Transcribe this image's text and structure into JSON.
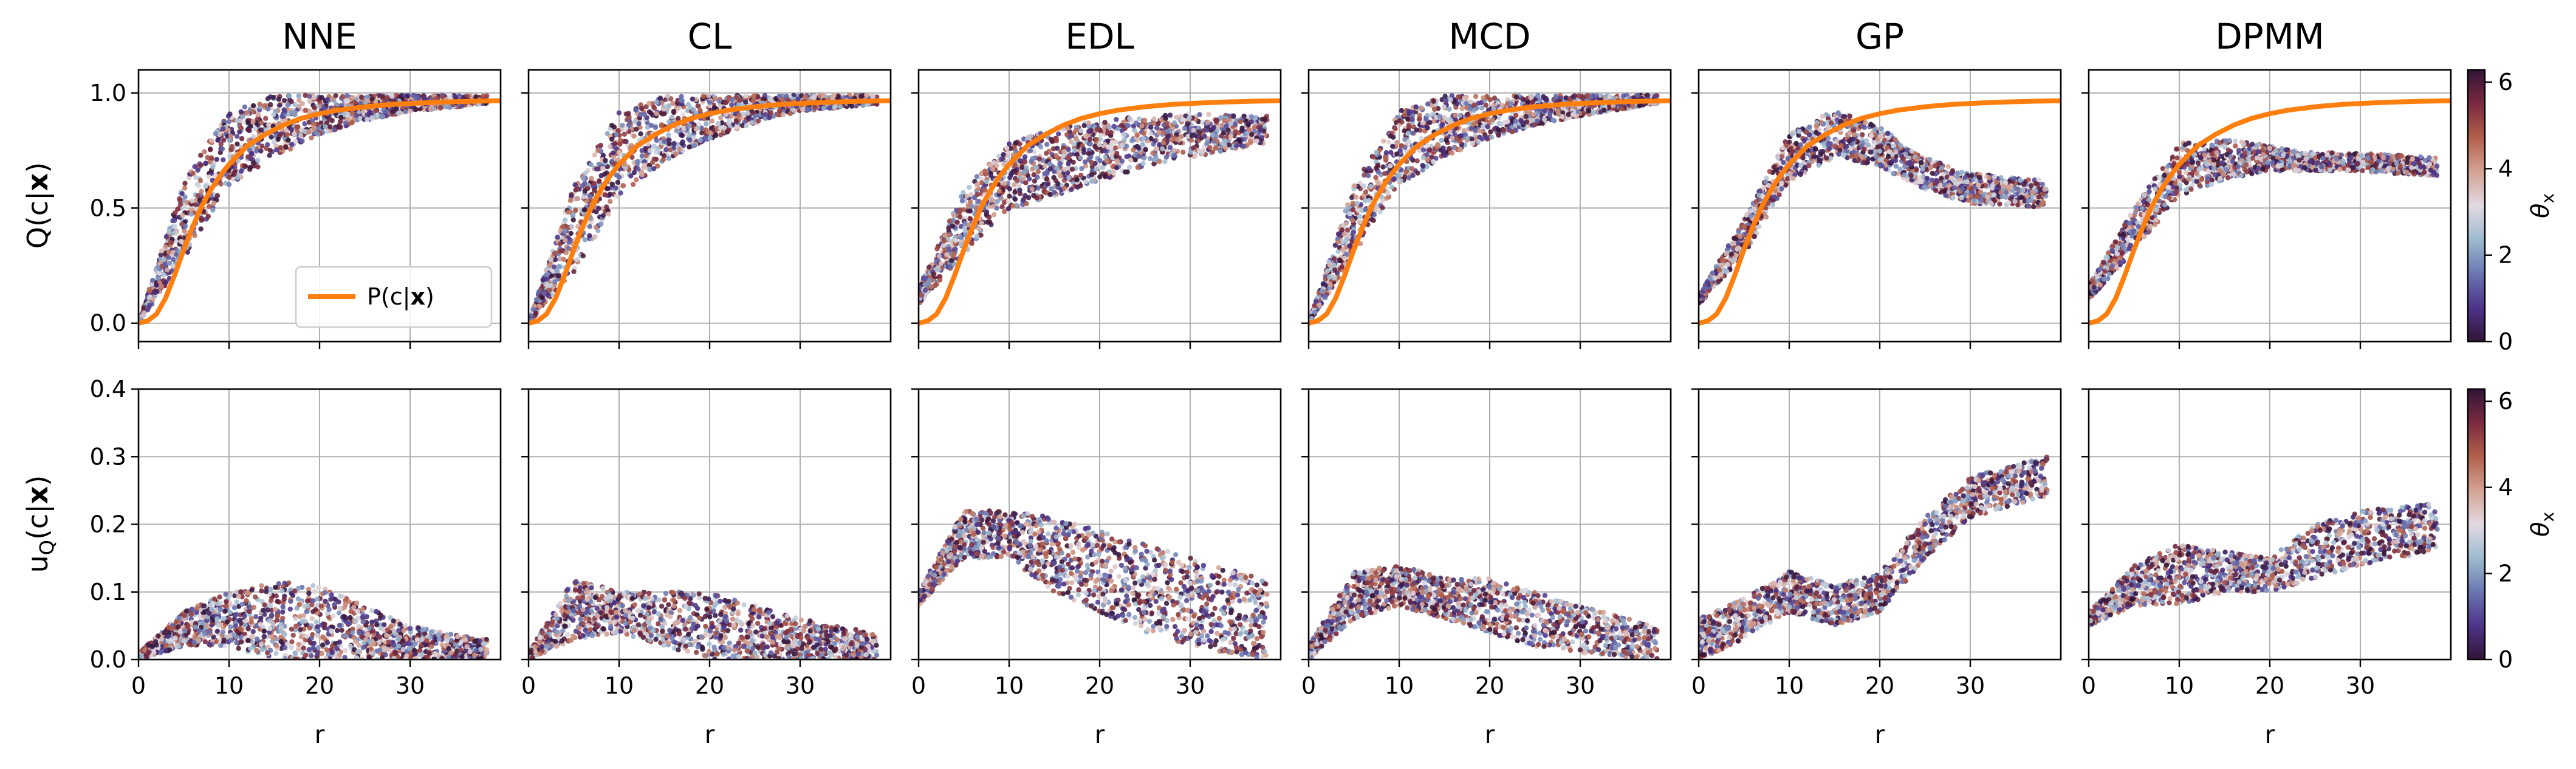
{
  "chart_data": {
    "type": "scatter",
    "panels": [
      "NNE",
      "CL",
      "EDL",
      "MCD",
      "GP",
      "DPMM"
    ],
    "x": {
      "label": "r",
      "ticks": [
        0,
        10,
        20,
        30
      ],
      "lim": [
        0,
        40
      ]
    },
    "rows": [
      {
        "ylabel": "Q(c|x)",
        "ylabel_prefix": "Q(c|",
        "ylabel_bold": "x",
        "ylabel_suffix": ")",
        "ylim": [
          -0.08,
          1.1
        ],
        "yticks": [
          0.0,
          0.5,
          1.0
        ],
        "ytick_labels": [
          "0.0",
          "0.5",
          "1.0"
        ],
        "reference_curve": {
          "name": "P(c|x)",
          "name_prefix": "P(c|",
          "name_bold": "x",
          "name_suffix": ")",
          "color": "#ff7f0e",
          "x": [
            0,
            1,
            2,
            3,
            4,
            5,
            6,
            7,
            8,
            9,
            10,
            11,
            12,
            14,
            16,
            18,
            20,
            22,
            25,
            28,
            31,
            34,
            37,
            40
          ],
          "y": [
            0.0,
            0.01,
            0.04,
            0.11,
            0.21,
            0.32,
            0.42,
            0.51,
            0.58,
            0.64,
            0.69,
            0.73,
            0.77,
            0.82,
            0.86,
            0.89,
            0.91,
            0.925,
            0.94,
            0.95,
            0.956,
            0.961,
            0.964,
            0.966
          ]
        },
        "legend_position": "lower-right of first panel",
        "approx_point_clouds": {
          "NNE": {
            "lower": [
              0,
              0.0,
              5,
              0.28,
              10,
              0.6,
              15,
              0.72,
              20,
              0.82,
              25,
              0.88,
              30,
              0.92,
              38,
              0.95
            ],
            "upper": [
              0,
              0.0,
              5,
              0.62,
              10,
              0.92,
              15,
              0.99,
              20,
              0.99,
              25,
              0.99,
              30,
              0.99,
              38,
              0.99
            ]
          },
          "CL": {
            "lower": [
              0,
              0.0,
              5,
              0.22,
              10,
              0.55,
              15,
              0.7,
              20,
              0.8,
              25,
              0.87,
              30,
              0.92,
              38,
              0.95
            ],
            "upper": [
              0,
              0.0,
              5,
              0.6,
              10,
              0.92,
              15,
              0.99,
              20,
              0.99,
              25,
              0.99,
              30,
              0.99,
              38,
              0.99
            ]
          },
          "EDL": {
            "lower": [
              0,
              0.08,
              5,
              0.3,
              10,
              0.5,
              15,
              0.55,
              20,
              0.62,
              25,
              0.68,
              30,
              0.72,
              38,
              0.78
            ],
            "upper": [
              0,
              0.15,
              5,
              0.58,
              10,
              0.78,
              15,
              0.85,
              20,
              0.88,
              25,
              0.9,
              30,
              0.91,
              38,
              0.9
            ]
          },
          "MCD": {
            "lower": [
              0,
              0.0,
              5,
              0.3,
              10,
              0.6,
              15,
              0.72,
              20,
              0.8,
              25,
              0.86,
              30,
              0.9,
              38,
              0.95
            ],
            "upper": [
              0,
              0.0,
              5,
              0.6,
              10,
              0.92,
              15,
              0.99,
              20,
              0.99,
              25,
              0.99,
              30,
              0.99,
              38,
              0.99
            ]
          },
          "GP": {
            "lower": [
              0,
              0.08,
              5,
              0.3,
              10,
              0.62,
              15,
              0.72,
              20,
              0.68,
              25,
              0.58,
              30,
              0.52,
              38,
              0.5
            ],
            "upper": [
              0,
              0.12,
              5,
              0.45,
              10,
              0.82,
              15,
              0.93,
              20,
              0.85,
              25,
              0.72,
              30,
              0.65,
              38,
              0.62
            ]
          },
          "DPMM": {
            "lower": [
              0,
              0.1,
              5,
              0.32,
              10,
              0.55,
              15,
              0.62,
              20,
              0.66,
              25,
              0.66,
              30,
              0.66,
              38,
              0.64
            ],
            "upper": [
              0,
              0.16,
              5,
              0.5,
              10,
              0.78,
              15,
              0.8,
              20,
              0.77,
              25,
              0.74,
              30,
              0.74,
              38,
              0.72
            ]
          }
        }
      },
      {
        "ylabel": "uQ(c|x)",
        "ylabel_prefix": "u",
        "ylabel_sub": "Q",
        "ylabel_mid": "(c|",
        "ylabel_bold": "x",
        "ylabel_suffix": ")",
        "ylim": [
          0.0,
          0.4
        ],
        "yticks": [
          0.0,
          0.1,
          0.2,
          0.3,
          0.4
        ],
        "ytick_labels": [
          "0.0",
          "0.1",
          "0.2",
          "0.3",
          "0.4"
        ],
        "ytick_labels_shown_on_first_panel_only": true,
        "approx_point_clouds": {
          "NNE": {
            "lower": [
              0,
              0.0,
              5,
              0.02,
              10,
              0.02,
              15,
              0.0,
              20,
              0.0,
              25,
              0.0,
              30,
              0.0,
              38,
              0.0
            ],
            "upper": [
              0,
              0.01,
              5,
              0.07,
              10,
              0.1,
              15,
              0.115,
              20,
              0.11,
              25,
              0.08,
              30,
              0.05,
              38,
              0.03
            ]
          },
          "CL": {
            "lower": [
              0,
              0.0,
              5,
              0.03,
              10,
              0.04,
              15,
              0.02,
              20,
              0.0,
              25,
              0.0,
              30,
              0.0,
              38,
              0.0
            ],
            "upper": [
              0,
              0.01,
              5,
              0.12,
              10,
              0.1,
              15,
              0.1,
              20,
              0.1,
              25,
              0.08,
              30,
              0.06,
              38,
              0.04
            ]
          },
          "EDL": {
            "lower": [
              0,
              0.08,
              5,
              0.15,
              10,
              0.15,
              15,
              0.1,
              20,
              0.07,
              25,
              0.04,
              30,
              0.02,
              38,
              0.0
            ],
            "upper": [
              0,
              0.1,
              5,
              0.22,
              10,
              0.22,
              15,
              0.21,
              20,
              0.19,
              25,
              0.17,
              30,
              0.15,
              38,
              0.12
            ]
          },
          "MCD": {
            "lower": [
              0,
              0.0,
              5,
              0.06,
              10,
              0.08,
              15,
              0.06,
              20,
              0.04,
              25,
              0.02,
              30,
              0.01,
              38,
              0.0
            ],
            "upper": [
              0,
              0.02,
              5,
              0.13,
              10,
              0.14,
              15,
              0.12,
              20,
              0.12,
              25,
              0.1,
              30,
              0.08,
              38,
              0.05
            ]
          },
          "GP": {
            "lower": [
              0,
              0.03,
              5,
              0.06,
              10,
              0.1,
              15,
              0.08,
              20,
              0.1,
              25,
              0.18,
              30,
              0.24,
              38,
              0.27
            ]
          },
          "DPMM": {
            "lower": [
              0,
              0.05,
              5,
              0.08,
              10,
              0.08,
              15,
              0.1,
              20,
              0.1,
              25,
              0.12,
              30,
              0.14,
              38,
              0.16
            ],
            "upper": [
              0,
              0.07,
              5,
              0.14,
              10,
              0.17,
              15,
              0.16,
              20,
              0.15,
              25,
              0.2,
              30,
              0.22,
              38,
              0.23
            ]
          }
        }
      }
    ],
    "colorbar": {
      "label": "θx",
      "label_main": "θ",
      "label_sub": "x",
      "range": [
        0,
        6.283
      ],
      "ticks": [
        0,
        2,
        4,
        6
      ],
      "tick_labels": [
        "0",
        "2",
        "4",
        "6"
      ],
      "colormap": "twilight_shifted",
      "colormap_stops": [
        "#301437",
        "#4e3389",
        "#6a76b2",
        "#9dbbcf",
        "#e2d9e2",
        "#d4a394",
        "#b2604b",
        "#7c2a40",
        "#301437"
      ]
    },
    "grid": true
  }
}
